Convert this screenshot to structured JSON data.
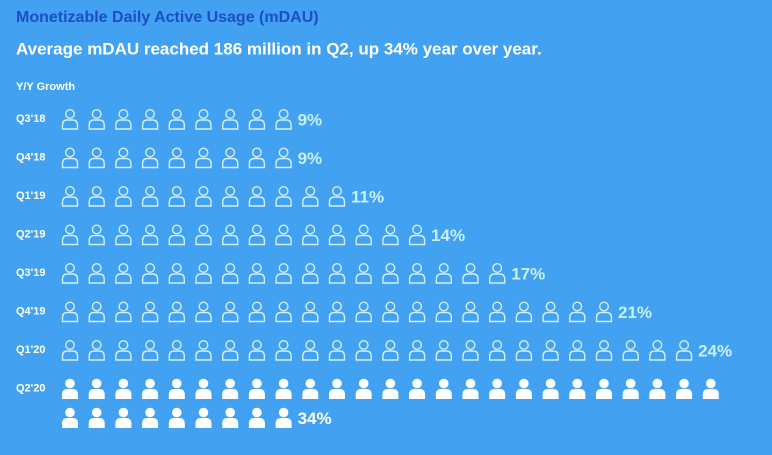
{
  "chart_data": {
    "type": "pictograph",
    "title": "Monetizable Daily Active Usage (mDAU)",
    "subtitle": "Average mDAU reached 186 million in Q2, up 34% year over year.",
    "axis_label": "Y/Y Growth",
    "categories": [
      "Q3'18",
      "Q4'18",
      "Q1'19",
      "Q2'19",
      "Q3'19",
      "Q4'19",
      "Q1'20",
      "Q2'20"
    ],
    "values": [
      9,
      9,
      11,
      14,
      17,
      21,
      24,
      34
    ],
    "value_labels": [
      "9%",
      "9%",
      "11%",
      "14%",
      "17%",
      "21%",
      "24%",
      "34%"
    ],
    "icon_styles": [
      "outline",
      "outline",
      "outline",
      "outline",
      "outline",
      "outline",
      "outline",
      "filled"
    ],
    "colors": [
      "#d2efff",
      "#d2efff",
      "#d2efff",
      "#d2efff",
      "#d2efff",
      "#d2efff",
      "#d2efff",
      "#ffffff"
    ],
    "label_colors": [
      "#c6f1ff",
      "#c6f1ff",
      "#c6f1ff",
      "#c6f1ff",
      "#c6f1ff",
      "#c6f1ff",
      "#c6f1ff",
      "#ffffff"
    ]
  }
}
